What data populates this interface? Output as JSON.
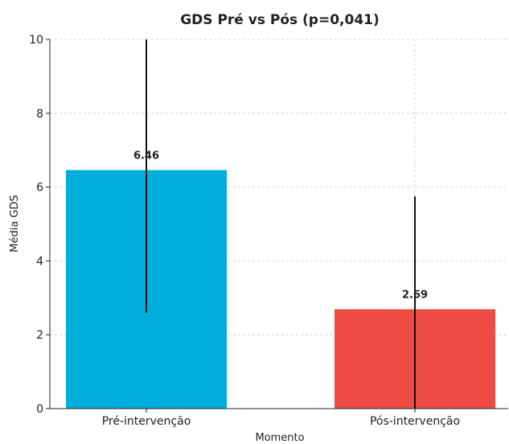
{
  "chart_data": {
    "type": "bar",
    "title": "GDS Pré vs Pós (p=0,041)",
    "xlabel": "Momento",
    "ylabel": "Média GDS",
    "categories": [
      "Pré-intervenção",
      "Pós-intervenção"
    ],
    "values": [
      6.46,
      2.69
    ],
    "value_labels": [
      "6.46",
      "2.69"
    ],
    "error_low": [
      2.6,
      0.0
    ],
    "error_high": [
      10.0,
      5.75
    ],
    "colors": [
      "#00AEDB",
      "#EF4B45"
    ],
    "ylim": [
      0,
      10
    ],
    "yticks": [
      0,
      2,
      4,
      6,
      8,
      10
    ],
    "grid": true
  }
}
